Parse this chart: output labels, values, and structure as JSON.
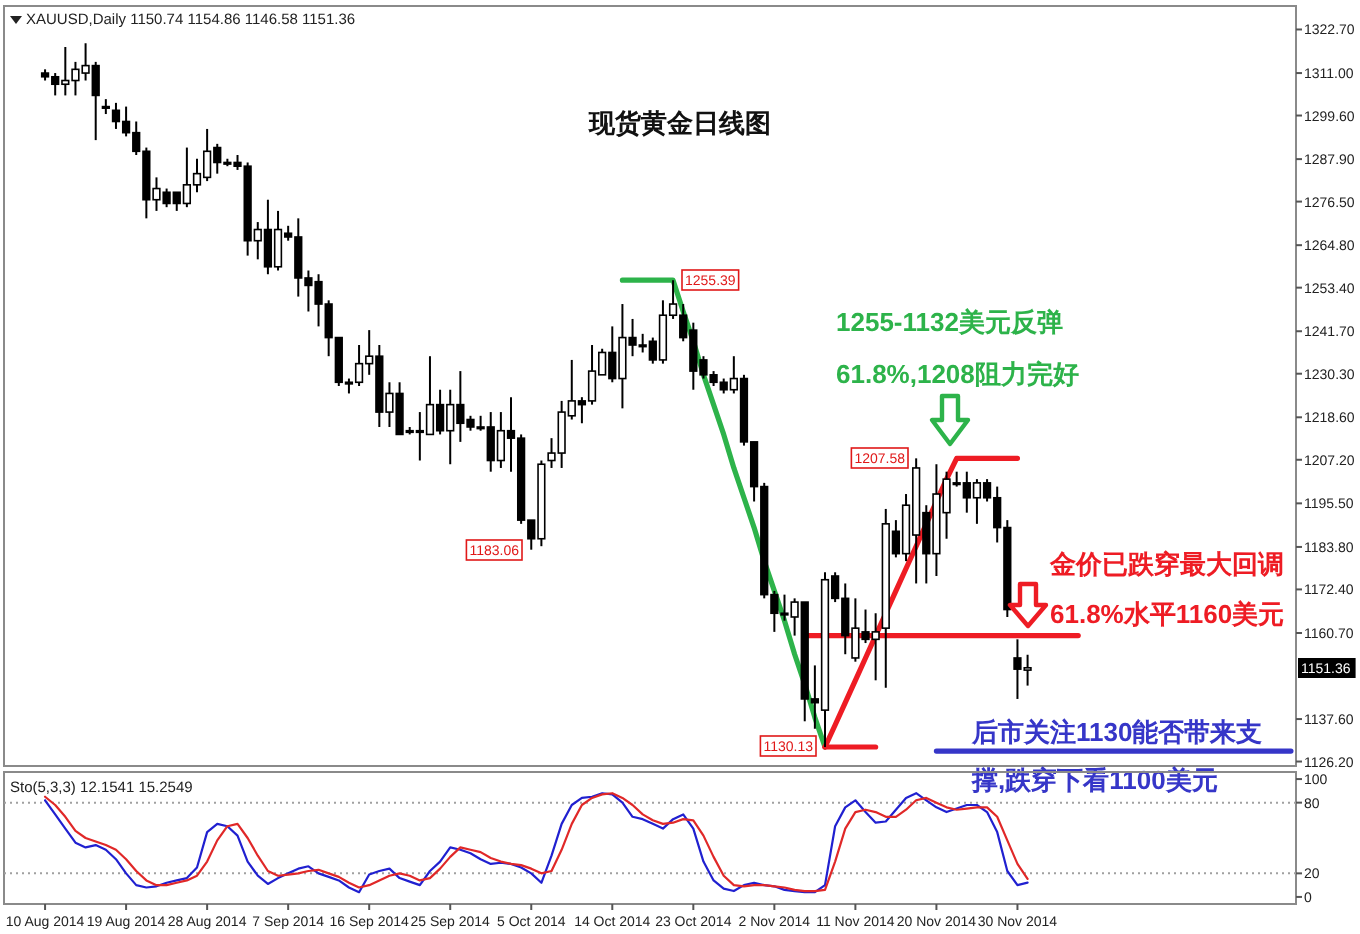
{
  "chart_data": [
    {
      "type": "candlestick",
      "title": "现货黄金日线图",
      "subtitle": "XAUUSD,Daily 1150.74 1154.86 1146.58 1151.36",
      "tick_labels": "y",
      "categories": [
        null,
        null,
        null,
        null,
        null,
        null,
        null,
        null,
        null,
        null,
        null,
        null,
        null,
        null,
        null,
        null,
        null,
        null,
        null,
        null,
        null,
        null,
        null,
        null,
        null,
        null,
        null,
        null,
        null,
        null,
        null,
        null,
        null,
        null,
        null,
        null,
        null,
        null,
        null,
        null,
        null,
        null,
        null,
        null,
        null,
        null,
        null,
        null,
        null,
        null,
        null,
        null,
        null,
        null,
        null,
        null,
        null,
        null,
        null,
        null,
        null,
        null,
        null,
        null,
        null,
        null,
        null,
        null,
        null,
        null,
        null,
        null,
        null,
        null,
        null,
        null,
        null,
        null,
        null,
        null,
        null,
        null,
        null,
        null,
        null,
        null,
        null,
        null,
        null,
        null,
        null,
        null,
        null,
        null,
        null,
        null,
        null,
        null,
        null,
        null,
        null,
        null,
        null,
        null,
        null,
        null,
        null,
        null,
        null,
        null,
        null,
        null,
        null,
        null,
        null,
        null,
        null,
        null,
        null,
        null,
        null,
        null,
        null,
        null
      ],
      "ylim": [
        1125,
        1329
      ],
      "yticks": [
        {
          "value": 1126.2,
          "label": "1126.20"
        },
        {
          "value": 1137.6,
          "label": "1137.60"
        },
        {
          "value": 1160.7,
          "label": "1160.70"
        },
        {
          "value": 1172.4,
          "label": "1172.40"
        },
        {
          "value": 1183.8,
          "label": "1183.80"
        },
        {
          "value": 1195.5,
          "label": "1195.50"
        },
        {
          "value": 1207.2,
          "label": "1207.20"
        },
        {
          "value": 1218.6,
          "label": "1218.60"
        },
        {
          "value": 1230.3,
          "label": "1230.30"
        },
        {
          "value": 1241.7,
          "label": "1241.70"
        },
        {
          "value": 1253.4,
          "label": "1253.40"
        },
        {
          "value": 1264.8,
          "label": "1264.80"
        },
        {
          "value": 1276.5,
          "label": "1276.50"
        },
        {
          "value": 1287.9,
          "label": "1287.90"
        },
        {
          "value": 1299.6,
          "label": "1299.60"
        },
        {
          "value": 1311.0,
          "label": "1311.00"
        },
        {
          "value": 1322.7,
          "label": "1322.70"
        }
      ],
      "ohlc": [
        [
          1311,
          1312,
          1309,
          1310
        ],
        [
          1310,
          1311,
          1305,
          1308
        ],
        [
          1308,
          1318,
          1305,
          1309
        ],
        [
          1309,
          1314,
          1305,
          1312
        ],
        [
          1311,
          1319,
          1309,
          1313
        ],
        [
          1313,
          1314,
          1293,
          1305
        ],
        [
          1302,
          1304,
          1300,
          1302
        ],
        [
          1301,
          1303,
          1296,
          1298
        ],
        [
          1298,
          1302,
          1294,
          1295
        ],
        [
          1295,
          1298,
          1289,
          1290
        ],
        [
          1290,
          1291,
          1272,
          1277
        ],
        [
          1277,
          1283,
          1274,
          1280
        ],
        [
          1279,
          1280,
          1275,
          1276
        ],
        [
          1279,
          1279,
          1274,
          1276
        ],
        [
          1276,
          1291,
          1275,
          1281
        ],
        [
          1281,
          1288,
          1279,
          1284
        ],
        [
          1283,
          1296,
          1282,
          1290
        ],
        [
          1291,
          1292,
          1284,
          1287
        ],
        [
          1287,
          1288,
          1286,
          1287
        ],
        [
          1287,
          1289,
          1285,
          1286
        ],
        [
          1286,
          1287,
          1262,
          1266
        ],
        [
          1266,
          1271,
          1261,
          1269
        ],
        [
          1269,
          1277,
          1257,
          1259
        ],
        [
          1259,
          1274,
          1258,
          1269
        ],
        [
          1268,
          1270,
          1266,
          1267
        ],
        [
          1267,
          1272,
          1251,
          1256
        ],
        [
          1256,
          1258,
          1247,
          1254
        ],
        [
          1255,
          1257,
          1243,
          1249
        ],
        [
          1249,
          1250,
          1235,
          1240
        ],
        [
          1240,
          1240,
          1227,
          1228
        ],
        [
          1228,
          1229,
          1225,
          1228
        ],
        [
          1228,
          1238,
          1227,
          1233
        ],
        [
          1233,
          1242,
          1230,
          1235
        ],
        [
          1235,
          1238,
          1216,
          1220
        ],
        [
          1220,
          1228,
          1216,
          1225
        ],
        [
          1225,
          1228,
          1214,
          1214
        ],
        [
          1215,
          1216,
          1214,
          1215
        ],
        [
          1215,
          1220,
          1207,
          1215
        ],
        [
          1214,
          1235,
          1214,
          1222
        ],
        [
          1222,
          1226,
          1214,
          1215
        ],
        [
          1215,
          1226,
          1206,
          1222
        ],
        [
          1222,
          1231,
          1212,
          1217
        ],
        [
          1218,
          1219,
          1215,
          1216
        ],
        [
          1216,
          1219,
          1215,
          1216
        ],
        [
          1216,
          1220,
          1204,
          1207
        ],
        [
          1207,
          1220,
          1205,
          1215
        ],
        [
          1215,
          1224,
          1204,
          1213
        ],
        [
          1213,
          1214,
          1190,
          1191
        ],
        [
          1191,
          1191,
          1183.06,
          1186
        ],
        [
          1186,
          1207,
          1184,
          1206
        ],
        [
          1207,
          1213,
          1205,
          1209
        ],
        [
          1209,
          1223,
          1205,
          1220
        ],
        [
          1219,
          1234,
          1218,
          1223
        ],
        [
          1223,
          1224,
          1217,
          1222
        ],
        [
          1223,
          1238,
          1222,
          1231
        ],
        [
          1230,
          1237,
          1230,
          1236
        ],
        [
          1236,
          1243,
          1228,
          1229
        ],
        [
          1229,
          1249,
          1221,
          1240
        ],
        [
          1240,
          1245,
          1235,
          1238
        ],
        [
          1238,
          1241,
          1236,
          1238
        ],
        [
          1239,
          1240,
          1233,
          1234
        ],
        [
          1234,
          1250,
          1233,
          1246
        ],
        [
          1246,
          1255.39,
          1245,
          1249
        ],
        [
          1246,
          1249,
          1239,
          1240
        ],
        [
          1242,
          1244,
          1226,
          1231
        ],
        [
          1234,
          1235,
          1229,
          1230
        ],
        [
          1230,
          1231,
          1227,
          1228
        ],
        [
          1228,
          1229,
          1225,
          1226
        ],
        [
          1226,
          1235,
          1225,
          1229
        ],
        [
          1229,
          1230,
          1211,
          1212
        ],
        [
          1212,
          1212,
          1196,
          1200
        ],
        [
          1200,
          1201,
          1170,
          1171
        ],
        [
          1171,
          1172,
          1161,
          1166
        ],
        [
          1166,
          1171,
          1164,
          1166
        ],
        [
          1165,
          1170,
          1160,
          1169
        ],
        [
          1169,
          1169,
          1137,
          1143
        ],
        [
          1143,
          1152,
          1135,
          1142
        ],
        [
          1140,
          1177,
          1130.13,
          1175
        ],
        [
          1176,
          1177,
          1169,
          1170
        ],
        [
          1170,
          1174,
          1155,
          1160
        ],
        [
          1154,
          1170,
          1153,
          1162
        ],
        [
          1161,
          1167,
          1158,
          1159
        ],
        [
          1159,
          1166,
          1148,
          1161
        ],
        [
          1162,
          1194,
          1146,
          1190
        ],
        [
          1188,
          1191,
          1181,
          1182
        ],
        [
          1182,
          1198,
          1180,
          1195
        ],
        [
          1187,
          1207.58,
          1174,
          1205
        ],
        [
          1193,
          1195,
          1174,
          1182
        ],
        [
          1182,
          1206,
          1176,
          1198
        ],
        [
          1193,
          1204,
          1186,
          1202
        ],
        [
          1201,
          1204,
          1200,
          1201
        ],
        [
          1201,
          1204,
          1193,
          1197
        ],
        [
          1197,
          1202,
          1190,
          1201
        ],
        [
          1201,
          1202,
          1196,
          1197
        ],
        [
          1197,
          1200,
          1185,
          1189
        ],
        [
          1189,
          1191,
          1165,
          1167
        ],
        [
          1154,
          1159,
          1143,
          1151
        ],
        [
          1150.74,
          1154.86,
          1146.58,
          1151.36
        ],
        null,
        null,
        null,
        null,
        null,
        null,
        null,
        null,
        null,
        null,
        null,
        null,
        null,
        null,
        null,
        null,
        null,
        null,
        null,
        null,
        null,
        null,
        null,
        null,
        null,
        null
      ],
      "series": [
        {
          "type": "line",
          "color": "#2db34a",
          "values": [
            null,
            null,
            null,
            null,
            null,
            null,
            null,
            null,
            null,
            null,
            null,
            null,
            null,
            null,
            null,
            null,
            null,
            null,
            null,
            null,
            null,
            null,
            null,
            null,
            null,
            null,
            null,
            null,
            null,
            null,
            null,
            null,
            null,
            null,
            null,
            null,
            null,
            null,
            null,
            null,
            null,
            null,
            null,
            null,
            null,
            null,
            null,
            null,
            null,
            null,
            null,
            null,
            null,
            null,
            null,
            null,
            null,
            1255.4,
            1255.4,
            1255.4,
            1255.4,
            1255.4,
            1255.4,
            1247,
            1239,
            1230,
            1222,
            1214,
            1205,
            1197,
            1189,
            1180,
            1172,
            1164,
            1155,
            1147,
            1138,
            1130.1,
            null,
            null,
            null,
            null,
            null,
            null,
            null,
            null,
            null,
            null,
            null,
            null,
            null,
            null,
            null,
            null,
            null,
            null,
            null,
            null,
            null,
            null,
            null,
            null,
            null,
            null,
            null,
            null,
            null,
            null,
            null,
            null,
            null,
            null,
            null,
            null,
            null,
            null,
            null,
            null,
            null,
            null,
            null,
            null,
            null,
            null
          ]
        },
        {
          "type": "line",
          "color": "#ee1c24",
          "values": [
            null,
            null,
            null,
            null,
            null,
            null,
            null,
            null,
            null,
            null,
            null,
            null,
            null,
            null,
            null,
            null,
            null,
            null,
            null,
            null,
            null,
            null,
            null,
            null,
            null,
            null,
            null,
            null,
            null,
            null,
            null,
            null,
            null,
            null,
            null,
            null,
            null,
            null,
            null,
            null,
            null,
            null,
            null,
            null,
            null,
            null,
            null,
            null,
            null,
            null,
            null,
            null,
            null,
            null,
            null,
            null,
            null,
            null,
            null,
            null,
            null,
            null,
            null,
            null,
            null,
            null,
            null,
            null,
            null,
            null,
            null,
            null,
            null,
            null,
            null,
            null,
            null,
            1130.1,
            1130.1,
            1130.1,
            1130.1,
            1130.1,
            1130.1,
            null,
            null,
            null,
            null,
            null,
            null,
            null,
            null,
            null,
            null,
            null,
            null,
            null,
            null,
            null,
            null,
            null,
            null,
            null,
            null,
            null,
            null,
            null,
            null,
            null,
            null,
            null,
            null,
            null,
            null,
            null,
            null,
            null,
            null,
            null,
            null,
            null,
            null,
            null,
            null,
            null
          ]
        },
        {
          "type": "line",
          "color": "#ee1c24",
          "values": [
            null,
            null,
            null,
            null,
            null,
            null,
            null,
            null,
            null,
            null,
            null,
            null,
            null,
            null,
            null,
            null,
            null,
            null,
            null,
            null,
            null,
            null,
            null,
            null,
            null,
            null,
            null,
            null,
            null,
            null,
            null,
            null,
            null,
            null,
            null,
            null,
            null,
            null,
            null,
            null,
            null,
            null,
            null,
            null,
            null,
            null,
            null,
            null,
            null,
            null,
            null,
            null,
            null,
            null,
            null,
            null,
            null,
            null,
            null,
            null,
            null,
            null,
            null,
            null,
            null,
            null,
            null,
            null,
            null,
            null,
            null,
            null,
            null,
            null,
            null,
            null,
            null,
            1130.1,
            1136,
            1142,
            1148,
            1154,
            1160,
            1166,
            1172,
            1178,
            1184,
            1190,
            1196,
            1202,
            1207.6,
            1207.6,
            1207.6,
            1207.6,
            1207.6,
            1207.6,
            1207.6,
            null,
            null,
            null,
            null,
            null,
            null,
            null,
            null,
            null,
            null,
            null,
            null,
            null,
            null,
            null,
            null,
            null,
            null,
            null,
            null,
            null,
            null,
            null,
            null,
            null,
            null,
            null
          ]
        },
        {
          "type": "line",
          "color": "#ee1c24",
          "values": [
            null,
            null,
            null,
            null,
            null,
            null,
            null,
            null,
            null,
            null,
            null,
            null,
            null,
            null,
            null,
            null,
            null,
            null,
            null,
            null,
            null,
            null,
            null,
            null,
            null,
            null,
            null,
            null,
            null,
            null,
            null,
            null,
            null,
            null,
            null,
            null,
            null,
            null,
            null,
            null,
            null,
            null,
            null,
            null,
            null,
            null,
            null,
            null,
            null,
            null,
            null,
            null,
            null,
            null,
            null,
            null,
            null,
            null,
            null,
            null,
            null,
            null,
            null,
            null,
            null,
            null,
            null,
            null,
            null,
            null,
            null,
            null,
            null,
            null,
            null,
            1160,
            1160,
            1160,
            1160,
            1160,
            1160,
            1160,
            1160,
            1160,
            1160,
            1160,
            1160,
            1160,
            1160,
            1160,
            1160,
            1160,
            1160,
            1160,
            1160,
            1160,
            1160,
            1160,
            1160,
            1160,
            1160,
            1160,
            1160,
            null,
            null,
            null,
            null,
            null,
            null,
            null,
            null,
            null,
            null,
            null,
            null,
            null,
            null,
            null,
            null,
            null,
            null,
            null,
            null,
            null
          ]
        },
        {
          "type": "line",
          "color": "#3636c8",
          "values": [
            null,
            null,
            null,
            null,
            null,
            null,
            null,
            null,
            null,
            null,
            null,
            null,
            null,
            null,
            null,
            null,
            null,
            null,
            null,
            null,
            null,
            null,
            null,
            null,
            null,
            null,
            null,
            null,
            null,
            null,
            null,
            null,
            null,
            null,
            null,
            null,
            null,
            null,
            null,
            null,
            null,
            null,
            null,
            null,
            null,
            null,
            null,
            null,
            null,
            null,
            null,
            null,
            null,
            null,
            null,
            null,
            null,
            null,
            null,
            null,
            null,
            null,
            null,
            null,
            null,
            null,
            null,
            null,
            null,
            null,
            null,
            null,
            null,
            null,
            null,
            null,
            null,
            null,
            null,
            null,
            null,
            null,
            null,
            null,
            null,
            null,
            null,
            null,
            1129,
            1129,
            1129,
            1129,
            1129,
            1129,
            1129,
            1129,
            1129,
            1129,
            1129,
            1129,
            1129,
            1129,
            1129,
            1129,
            1129,
            1129,
            1129,
            1129,
            1129,
            1129,
            1129,
            1129,
            1129,
            1129,
            1129,
            1129,
            1129,
            1129,
            1129,
            1129,
            1129,
            1129,
            1129,
            1129
          ]
        }
      ],
      "annotations": [
        "1255-1132美元反弹",
        "61.8%,1208阻力完好",
        "金价已跌穿最大回调",
        "61.8%水平1160美元",
        "后市关注1130能否带来支",
        "撑,跌穿下看1100美元",
        "1255.39",
        "1183.06",
        "1207.58",
        "1130.13",
        "1151.36"
      ]
    },
    {
      "type": "line",
      "title": "Sto(5,3,3) 12.1541 15.2549",
      "categories": [
        "10 Aug 2014",
        null,
        null,
        null,
        null,
        null,
        null,
        null,
        "19 Aug 2014",
        null,
        null,
        null,
        null,
        null,
        null,
        null,
        "28 Aug 2014",
        null,
        null,
        null,
        null,
        null,
        null,
        null,
        "7 Sep 2014",
        null,
        null,
        null,
        null,
        null,
        null,
        null,
        "16 Sep 2014",
        null,
        null,
        null,
        null,
        null,
        null,
        null,
        "25 Sep 2014",
        null,
        null,
        null,
        null,
        null,
        null,
        null,
        "5 Oct 2014",
        null,
        null,
        null,
        null,
        null,
        null,
        null,
        "14 Oct 2014",
        null,
        null,
        null,
        null,
        null,
        null,
        null,
        "23 Oct 2014",
        null,
        null,
        null,
        null,
        null,
        null,
        null,
        "2 Nov 2014",
        null,
        null,
        null,
        null,
        null,
        null,
        null,
        "11 Nov 2014",
        null,
        null,
        null,
        null,
        null,
        null,
        null,
        "20 Nov 2014",
        null,
        null,
        null,
        null,
        null,
        null,
        null,
        "30 Nov 2014",
        null,
        null,
        null,
        null,
        null,
        null,
        null,
        null,
        null,
        null,
        null,
        null,
        null,
        null,
        null,
        null,
        null,
        null,
        null,
        null,
        null,
        null,
        null,
        null,
        null,
        null,
        null
      ],
      "ylim": [
        -6,
        106
      ],
      "yticks": [
        0,
        20,
        80,
        100
      ],
      "ref_lines": [
        {
          "axis": "y",
          "value": 20,
          "color": "#a0a0a0",
          "line_style": "dotted"
        },
        {
          "axis": "y",
          "value": 80,
          "color": "#a0a0a0",
          "line_style": "dotted"
        }
      ],
      "series": [
        {
          "color": "#2020d0",
          "values": [
            82,
            70,
            58,
            46,
            42,
            44,
            40,
            32,
            20,
            10,
            8,
            9,
            12,
            14,
            16,
            25,
            55,
            62,
            60,
            52,
            30,
            18,
            11,
            16,
            20,
            24,
            26,
            20,
            17,
            14,
            8,
            4,
            19,
            22,
            24,
            16,
            13,
            10,
            22,
            30,
            42,
            40,
            37,
            32,
            28,
            29,
            28,
            25,
            20,
            12,
            35,
            62,
            78,
            84,
            85,
            88,
            87,
            80,
            68,
            66,
            62,
            58,
            66,
            70,
            58,
            30,
            14,
            7,
            5,
            10,
            12,
            10,
            9,
            6,
            5,
            4,
            4,
            10,
            60,
            76,
            82,
            72,
            63,
            64,
            74,
            84,
            88,
            82,
            76,
            72,
            75,
            78,
            78,
            72,
            55,
            22,
            10,
            12.1541,
            null,
            null,
            null,
            null,
            null,
            null,
            null,
            null,
            null,
            null,
            null,
            null,
            null,
            null,
            null,
            null,
            null,
            null,
            null,
            null,
            null,
            null,
            null,
            null,
            null,
            null
          ]
        },
        {
          "color": "#e02828",
          "values": [
            85,
            78,
            68,
            56,
            50,
            47,
            44,
            40,
            32,
            22,
            14,
            10,
            10,
            12,
            14,
            18,
            30,
            48,
            60,
            62,
            50,
            35,
            22,
            18,
            19,
            20,
            22,
            23,
            20,
            17,
            12,
            8,
            10,
            14,
            18,
            20,
            18,
            14,
            16,
            24,
            34,
            42,
            40,
            38,
            33,
            30,
            28,
            27,
            24,
            20,
            22,
            40,
            62,
            78,
            84,
            87,
            88,
            84,
            78,
            70,
            65,
            62,
            63,
            66,
            65,
            52,
            34,
            18,
            10,
            9,
            10,
            10,
            9,
            8,
            6,
            5,
            5,
            6,
            30,
            58,
            72,
            74,
            72,
            68,
            68,
            74,
            82,
            84,
            80,
            76,
            74,
            75,
            76,
            76,
            68,
            48,
            28,
            15.2549,
            null,
            null,
            null,
            null,
            null,
            null,
            null,
            null,
            null,
            null,
            null,
            null,
            null,
            null,
            null,
            null,
            null,
            null,
            null,
            null,
            null,
            null,
            null,
            null,
            null,
            null
          ]
        }
      ]
    }
  ]
}
